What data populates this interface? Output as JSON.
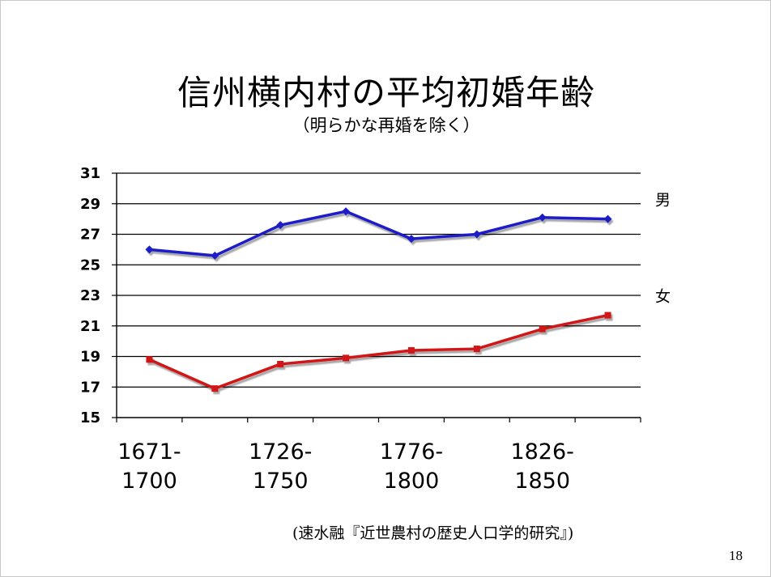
{
  "slide": {
    "title": "信州横内村の平均初婚年齢",
    "subtitle": "（明らかな再婚を除く）",
    "source": "(速水融『近世農村の歴史人口学的研究』)",
    "page_number": "18"
  },
  "chart_data": {
    "type": "line",
    "title": "信州横内村の平均初婚年齢",
    "subtitle": "（明らかな再婚を除く）",
    "xlabel": "",
    "ylabel": "",
    "ylim": [
      15,
      31
    ],
    "yticks": [
      "31",
      "29",
      "27",
      "25",
      "23",
      "21",
      "19",
      "17",
      "15"
    ],
    "x_tick_labels": [
      {
        "lines": [
          "1671-",
          "1700"
        ],
        "group": 0
      },
      {
        "lines": [
          "1726-",
          "1750"
        ],
        "group": 2
      },
      {
        "lines": [
          "1776-",
          "1800"
        ],
        "group": 4
      },
      {
        "lines": [
          "1826-",
          "1850"
        ],
        "group": 6
      }
    ],
    "n_groups": 8,
    "grid": true,
    "series": [
      {
        "name": "男",
        "color": "#1f1fc8",
        "marker": "diamond",
        "values": [
          26.0,
          25.6,
          27.6,
          28.5,
          26.7,
          27.0,
          28.1,
          28.0
        ]
      },
      {
        "name": "女",
        "color": "#d01818",
        "marker": "square",
        "values": [
          18.8,
          16.9,
          18.5,
          18.9,
          19.4,
          19.5,
          20.8,
          21.7
        ]
      }
    ]
  }
}
